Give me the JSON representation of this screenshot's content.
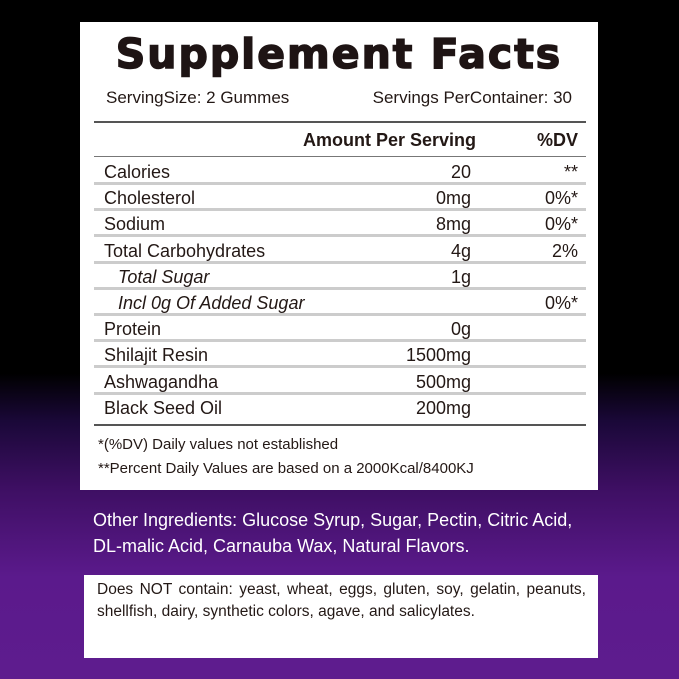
{
  "title": "Supplement Facts",
  "serving_size": "ServingSize: 2 Gummes",
  "servings_per_container": "Servings PerContainer: 30",
  "header": {
    "amount": "Amount Per Serving",
    "dv": "%DV"
  },
  "rows": [
    {
      "name": "Calories",
      "amount": "20",
      "dv": "**"
    },
    {
      "name": "Cholesterol",
      "amount": "0mg",
      "dv": "0%*"
    },
    {
      "name": "Sodium",
      "amount": "8mg",
      "dv": "0%*"
    },
    {
      "name": "Total Carbohydrates",
      "amount": "4g",
      "dv": "2%"
    },
    {
      "name": "Total Sugar",
      "amount": "1g",
      "dv": ""
    },
    {
      "name": "Incl 0g Of Added Sugar",
      "amount": "",
      "dv": "0%*"
    },
    {
      "name": "Protein",
      "amount": "0g",
      "dv": ""
    },
    {
      "name": "Shilajit Resin",
      "amount": "1500mg",
      "dv": ""
    },
    {
      "name": "Ashwagandha",
      "amount": "500mg",
      "dv": ""
    },
    {
      "name": "Black Seed Oil",
      "amount": "200mg",
      "dv": ""
    }
  ],
  "notes": [
    "*(%DV) Daily values not established",
    "**Percent Daily Values are based on a 2000Kcal/8400KJ"
  ],
  "other_ingredients": "Other Ingredients: Glucose Syrup, Sugar, Pectin, Citric Acid, DL-malic Acid, Carnauba Wax, Natural Flavors.",
  "does_not_contain": "Does NOT contain: yeast, wheat, eggs, gluten, soy, gelatin, peanuts, shellfish, dairy, synthetic colors, agave, and salicylates."
}
